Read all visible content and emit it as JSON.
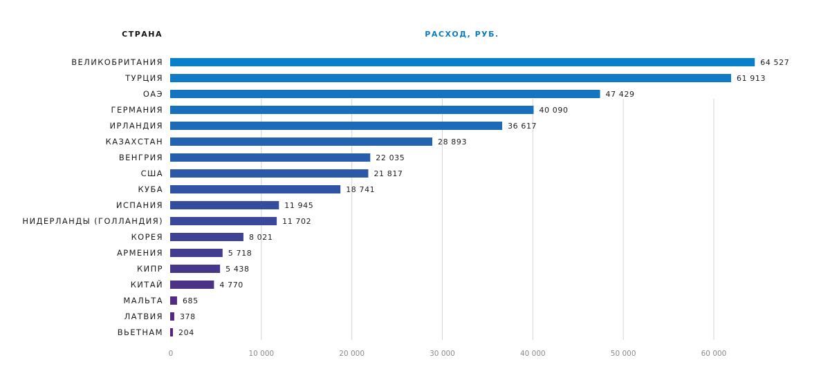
{
  "header": {
    "category_title": "СТРАНА",
    "value_title": "РАСХОД, РУБ."
  },
  "colors": {
    "value_title": "#0a7bc2",
    "category_title": "#111111",
    "grid": "#d4d4d4",
    "bar_top": "#0a80ca",
    "bar_bottom": "#5a2178"
  },
  "chart_data": {
    "type": "bar",
    "orientation": "horizontal",
    "categories": [
      "ВЕЛИКОБРИТАНИЯ",
      "ТУРЦИЯ",
      "ОАЭ",
      "ГЕРМАНИЯ",
      "ИРЛАНДИЯ",
      "КАЗАХСТАН",
      "ВЕНГРИЯ",
      "США",
      "КУБА",
      "ИСПАНИЯ",
      "НИДЕРЛАНДЫ (ГОЛЛАНДИЯ)",
      "КОРЕЯ",
      "АРМЕНИЯ",
      "КИПР",
      "КИТАЙ",
      "МАЛЬТА",
      "ЛАТВИЯ",
      "ВЬЕТНАМ"
    ],
    "values": [
      64527,
      61913,
      47429,
      40090,
      36617,
      28893,
      22035,
      21817,
      18741,
      11945,
      11702,
      8021,
      5718,
      5438,
      4770,
      685,
      378,
      204
    ],
    "value_labels": [
      "64 527",
      "61 913",
      "47 429",
      "40 090",
      "36 617",
      "28 893",
      "22 035",
      "21 817",
      "18 741",
      "11 945",
      "11 702",
      "8 021",
      "5 718",
      "5 438",
      "4 770",
      "685",
      "378",
      "204"
    ],
    "xlim": [
      0,
      60000
    ],
    "xticks": [
      0,
      10000,
      20000,
      30000,
      40000,
      50000,
      60000
    ],
    "xtick_labels": [
      "0",
      "10 000",
      "20 000",
      "30 000",
      "40 000",
      "50 000",
      "60 000"
    ],
    "grid": true,
    "legend": "none"
  }
}
